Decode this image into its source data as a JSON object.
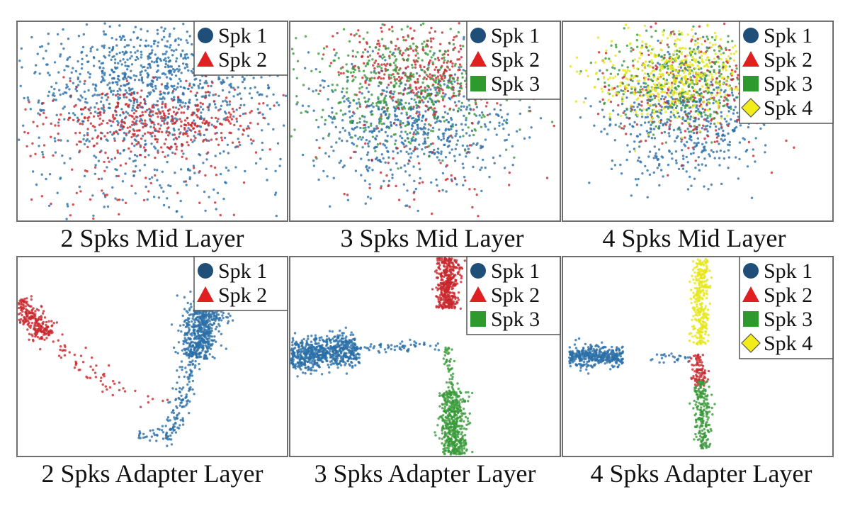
{
  "colors": {
    "spk1": "#2a6fa8",
    "spk2": "#c8282d",
    "spk3": "#3a9a3a",
    "spk4": "#e6e619",
    "spk1_marker": "#1f4e79",
    "spk2_marker": "#e02020",
    "spk3_marker": "#2e9a2e",
    "spk4_marker": "#f2ec1a"
  },
  "legend_labels": [
    "Spk 1",
    "Spk 2",
    "Spk 3",
    "Spk 4"
  ],
  "legend_icons": [
    "circle-icon",
    "triangle-icon",
    "square-icon",
    "diamond-icon"
  ],
  "chart_data": [
    {
      "type": "scatter",
      "title": "2 Spks Mid Layer",
      "grid": false,
      "legend_placement": "top-right",
      "xlim": [
        -1,
        1
      ],
      "ylim": [
        -1,
        1
      ],
      "series": [
        {
          "name": "Spk 1",
          "color": "#2a6fa8",
          "shape": "circle",
          "clusters": [
            {
              "cx": 0.05,
              "cy": 0.45,
              "sx": 0.5,
              "sy": 0.28,
              "n": 900
            },
            {
              "cx": 0.0,
              "cy": -0.3,
              "sx": 0.55,
              "sy": 0.35,
              "n": 300
            }
          ]
        },
        {
          "name": "Spk 2",
          "color": "#c8282d",
          "shape": "triangle",
          "clusters": [
            {
              "cx": 0.0,
              "cy": 0.0,
              "sx": 0.4,
              "sy": 0.16,
              "n": 420
            },
            {
              "cx": -0.1,
              "cy": -0.55,
              "sx": 0.5,
              "sy": 0.3,
              "n": 80
            }
          ]
        }
      ]
    },
    {
      "type": "scatter",
      "title": "3 Spks Mid Layer",
      "grid": false,
      "legend_placement": "top-right",
      "xlim": [
        -1,
        1
      ],
      "ylim": [
        -1,
        1
      ],
      "series": [
        {
          "name": "Spk 1",
          "color": "#2a6fa8",
          "shape": "circle",
          "clusters": [
            {
              "cx": -0.1,
              "cy": -0.05,
              "sx": 0.38,
              "sy": 0.3,
              "n": 650
            }
          ]
        },
        {
          "name": "Spk 2",
          "color": "#c8282d",
          "shape": "triangle",
          "clusters": [
            {
              "cx": 0.0,
              "cy": 0.5,
              "sx": 0.3,
              "sy": 0.24,
              "n": 350
            },
            {
              "cx": 0.0,
              "cy": -0.5,
              "sx": 0.4,
              "sy": 0.3,
              "n": 60
            }
          ]
        },
        {
          "name": "Spk 3",
          "color": "#3a9a3a",
          "shape": "square",
          "clusters": [
            {
              "cx": -0.15,
              "cy": 0.4,
              "sx": 0.38,
              "sy": 0.3,
              "n": 480
            }
          ]
        }
      ]
    },
    {
      "type": "scatter",
      "title": "4 Spks Mid Layer",
      "grid": false,
      "legend_placement": "top-right",
      "xlim": [
        -1,
        1
      ],
      "ylim": [
        -1,
        1
      ],
      "series": [
        {
          "name": "Spk 1",
          "color": "#2a6fa8",
          "shape": "circle",
          "clusters": [
            {
              "cx": -0.1,
              "cy": 0.0,
              "sx": 0.3,
              "sy": 0.3,
              "n": 500
            }
          ]
        },
        {
          "name": "Spk 2",
          "color": "#c8282d",
          "shape": "triangle",
          "clusters": [
            {
              "cx": -0.05,
              "cy": 0.3,
              "sx": 0.32,
              "sy": 0.28,
              "n": 260
            }
          ]
        },
        {
          "name": "Spk 3",
          "color": "#3a9a3a",
          "shape": "square",
          "clusters": [
            {
              "cx": -0.1,
              "cy": 0.45,
              "sx": 0.3,
              "sy": 0.25,
              "n": 360
            }
          ]
        },
        {
          "name": "Spk 4",
          "color": "#e6e619",
          "shape": "diamond",
          "clusters": [
            {
              "cx": -0.15,
              "cy": 0.45,
              "sx": 0.28,
              "sy": 0.22,
              "n": 480
            }
          ]
        }
      ]
    },
    {
      "type": "scatter",
      "title": "2 Spks Adapter Layer",
      "grid": false,
      "legend_placement": "top-right",
      "xlim": [
        -1,
        1
      ],
      "ylim": [
        -1,
        1
      ],
      "series": [
        {
          "name": "Spk 1",
          "color": "#2a6fa8",
          "shape": "circle",
          "segments": [
            {
              "from": [
                0.15,
                -0.8
              ],
              "to": [
                0.3,
                0.0
              ],
              "width": 0.04,
              "n": 120
            },
            {
              "from": [
                0.3,
                0.0
              ],
              "to": [
                0.52,
                0.85
              ],
              "width": 0.07,
              "n": 900
            },
            {
              "from": [
                -0.1,
                -0.8
              ],
              "to": [
                0.15,
                -0.8
              ],
              "width": 0.04,
              "n": 40
            }
          ]
        },
        {
          "name": "Spk 2",
          "color": "#c8282d",
          "shape": "triangle",
          "segments": [
            {
              "from": [
                -1.0,
                0.55
              ],
              "to": [
                -0.78,
                0.2
              ],
              "width": 0.05,
              "n": 260
            },
            {
              "from": [
                -0.78,
                0.2
              ],
              "to": [
                -0.3,
                -0.3
              ],
              "width": 0.05,
              "n": 50
            },
            {
              "from": [
                -0.3,
                -0.3
              ],
              "to": [
                0.1,
                -0.5
              ],
              "width": 0.06,
              "n": 12
            }
          ]
        }
      ]
    },
    {
      "type": "scatter",
      "title": "3 Spks Adapter Layer",
      "grid": false,
      "legend_placement": "top-right",
      "xlim": [
        -1,
        1
      ],
      "ylim": [
        -1,
        1
      ],
      "series": [
        {
          "name": "Spk 1",
          "color": "#2a6fa8",
          "shape": "circle",
          "segments": [
            {
              "from": [
                -1.0,
                0.0
              ],
              "to": [
                -0.5,
                0.08
              ],
              "width": 0.08,
              "n": 700
            },
            {
              "from": [
                -0.5,
                0.08
              ],
              "to": [
                0.1,
                0.12
              ],
              "width": 0.03,
              "n": 60
            }
          ]
        },
        {
          "name": "Spk 2",
          "color": "#c8282d",
          "shape": "triangle",
          "segments": [
            {
              "from": [
                0.16,
                0.48
              ],
              "to": [
                0.18,
                1.0
              ],
              "width": 0.04,
              "n": 420
            }
          ]
        },
        {
          "name": "Spk 3",
          "color": "#3a9a3a",
          "shape": "square",
          "segments": [
            {
              "from": [
                0.16,
                0.1
              ],
              "to": [
                0.2,
                -0.35
              ],
              "width": 0.02,
              "n": 50
            },
            {
              "from": [
                0.2,
                -0.35
              ],
              "to": [
                0.22,
                -0.98
              ],
              "width": 0.05,
              "n": 500
            }
          ]
        }
      ]
    },
    {
      "type": "scatter",
      "title": "4 Spks Adapter Layer",
      "grid": false,
      "legend_placement": "top-right",
      "xlim": [
        -1,
        1
      ],
      "ylim": [
        -1,
        1
      ],
      "series": [
        {
          "name": "Spk 1",
          "color": "#2a6fa8",
          "shape": "circle",
          "segments": [
            {
              "from": [
                -0.95,
                0.0
              ],
              "to": [
                -0.55,
                0.0
              ],
              "width": 0.05,
              "n": 380
            },
            {
              "from": [
                -0.35,
                -0.02
              ],
              "to": [
                -0.05,
                -0.02
              ],
              "width": 0.03,
              "n": 25
            }
          ]
        },
        {
          "name": "Spk 2",
          "color": "#c8282d",
          "shape": "triangle",
          "segments": [
            {
              "from": [
                0.0,
                0.02
              ],
              "to": [
                0.02,
                -0.3
              ],
              "width": 0.03,
              "n": 90
            }
          ]
        },
        {
          "name": "Spk 3",
          "color": "#3a9a3a",
          "shape": "square",
          "segments": [
            {
              "from": [
                0.02,
                -0.25
              ],
              "to": [
                0.05,
                -0.92
              ],
              "width": 0.03,
              "n": 220
            }
          ]
        },
        {
          "name": "Spk 4",
          "color": "#e6e619",
          "shape": "diamond",
          "segments": [
            {
              "from": [
                0.02,
                0.12
              ],
              "to": [
                0.02,
                0.98
              ],
              "width": 0.03,
              "n": 300
            }
          ]
        }
      ]
    }
  ]
}
